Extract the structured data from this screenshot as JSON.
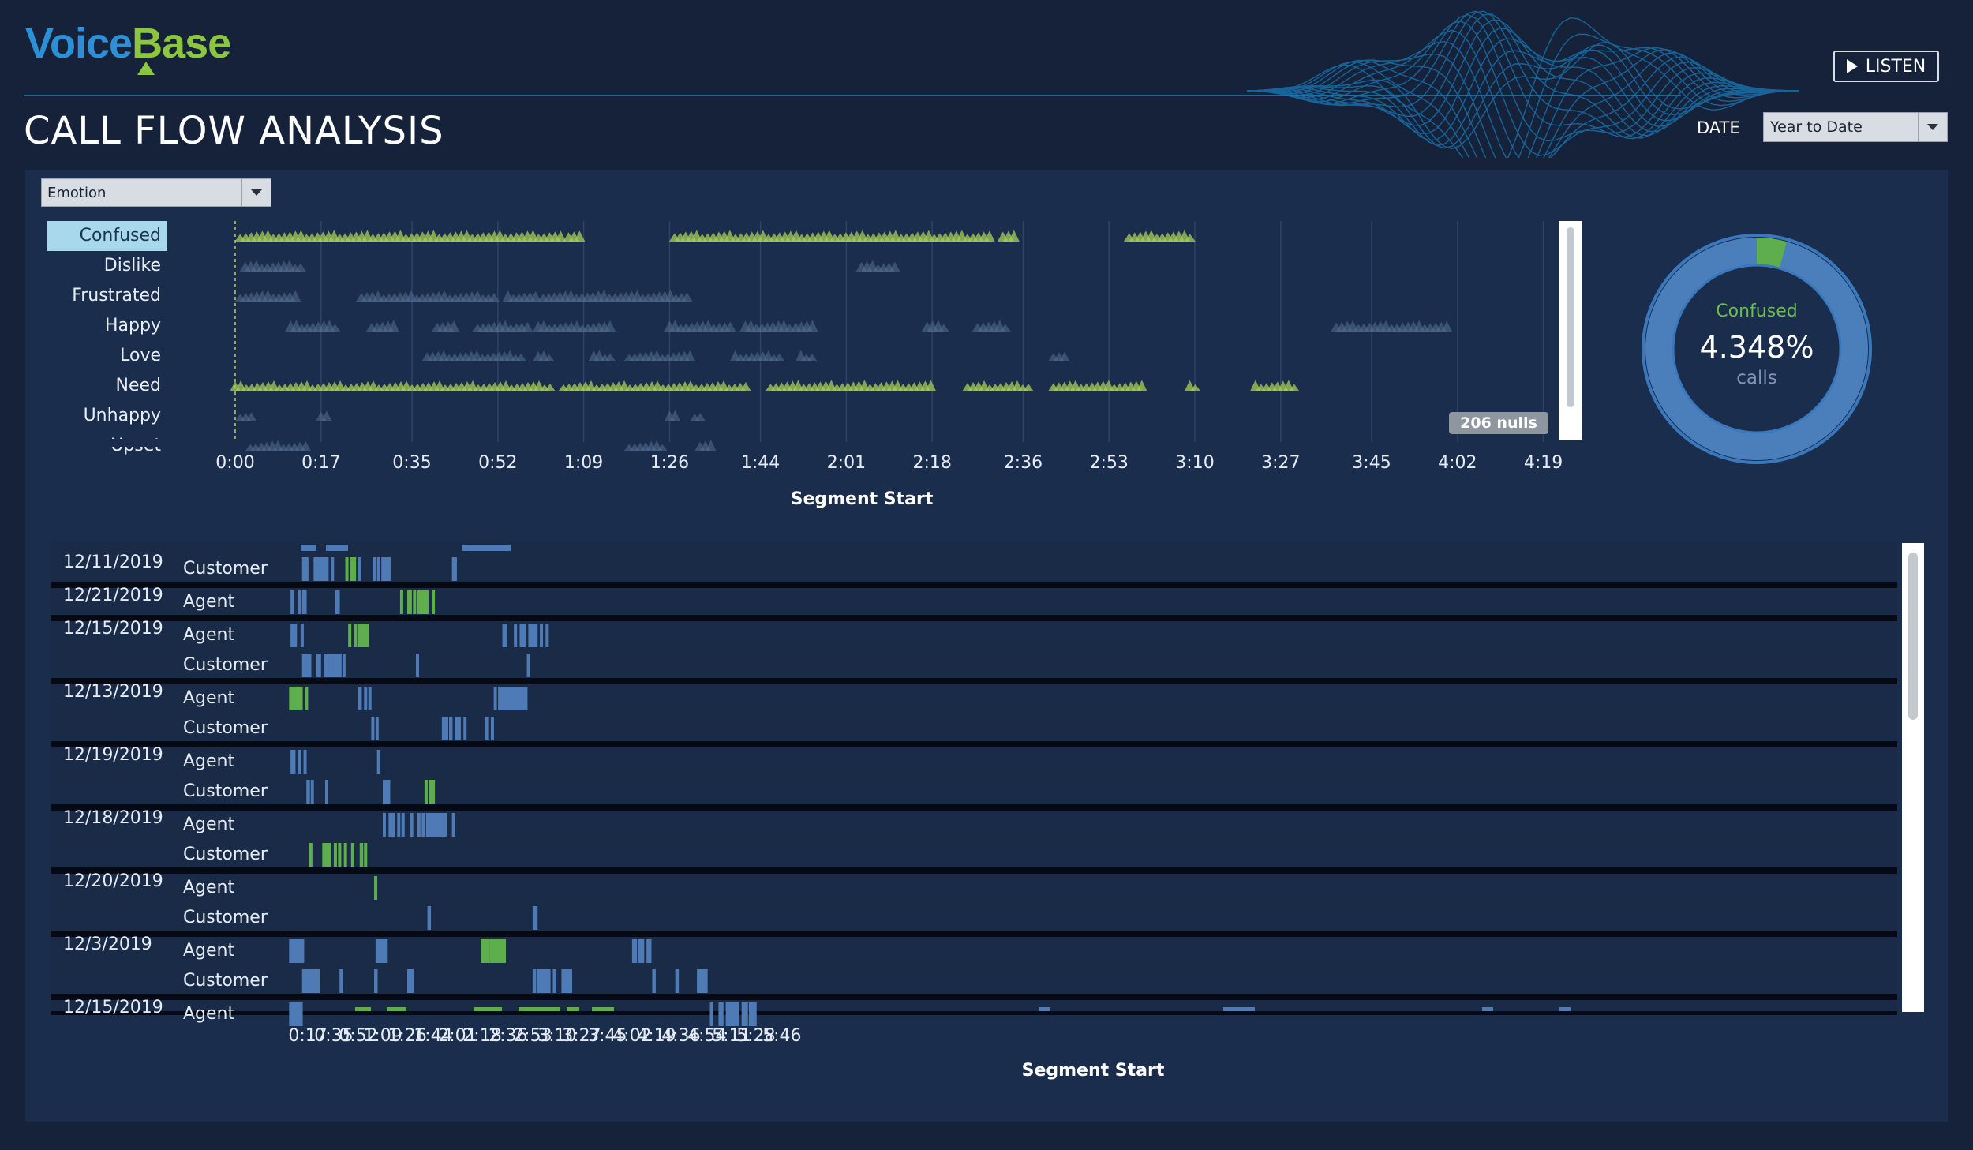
{
  "header": {
    "logo_voice": "Voice",
    "logo_base": "Base",
    "listen_label": "LISTEN",
    "title": "CALL FLOW ANALYSIS",
    "date_label": "DATE",
    "date_value": "Year to Date"
  },
  "colors": {
    "page_bg": "#15223a",
    "panel_bg": "#1b2d4c",
    "segment_blue": "#4e7ab5",
    "segment_green": "#5fae4e",
    "triangle_green": "#a6cf57",
    "triangle_dim": "#56708f",
    "donut_blue": "#4a7fbb",
    "donut_green": "#5fae4e"
  },
  "emotion_chart": {
    "filter_value": "Emotion",
    "emotions": [
      "Confused",
      "Dislike",
      "Frustrated",
      "Happy",
      "Love",
      "Need",
      "Unhappy",
      "Upset"
    ],
    "selected": "Confused",
    "x_ticks": [
      "0:00",
      "0:17",
      "0:35",
      "0:52",
      "1:09",
      "1:26",
      "1:44",
      "2:01",
      "2:18",
      "2:36",
      "2:53",
      "3:10",
      "3:27",
      "3:45",
      "4:02",
      "4:19"
    ],
    "x_title": "Segment Start",
    "nulls_label": "206 nulls",
    "marks": [
      {
        "emotion": "Confused",
        "bright": true,
        "ranges": [
          [
            "0:01",
            "1:05"
          ],
          [
            "1:06",
            "1:09"
          ],
          [
            "1:27",
            "2:30"
          ],
          [
            "2:32",
            "2:35"
          ],
          [
            "2:57",
            "3:10"
          ]
        ]
      },
      {
        "emotion": "Dislike",
        "bright": false,
        "ranges": [
          [
            "0:02",
            "0:14"
          ],
          [
            "2:04",
            "2:11"
          ]
        ]
      },
      {
        "emotion": "Frustrated",
        "bright": false,
        "ranges": [
          [
            "0:01",
            "0:13"
          ],
          [
            "0:25",
            "0:52"
          ],
          [
            "0:54",
            "1:00"
          ],
          [
            "1:01",
            "1:30"
          ]
        ]
      },
      {
        "emotion": "Happy",
        "bright": false,
        "ranges": [
          [
            "0:11",
            "0:20"
          ],
          [
            "0:27",
            "0:32"
          ],
          [
            "0:40",
            "0:44"
          ],
          [
            "0:48",
            "0:58"
          ],
          [
            "1:00",
            "1:15"
          ],
          [
            "1:26",
            "1:39"
          ],
          [
            "1:41",
            "1:50"
          ],
          [
            "1:51",
            "1:55"
          ],
          [
            "2:17",
            "2:21"
          ],
          [
            "2:27",
            "2:33"
          ],
          [
            "3:38",
            "4:00"
          ]
        ]
      },
      {
        "emotion": "Love",
        "bright": false,
        "ranges": [
          [
            "0:38",
            "0:57"
          ],
          [
            "1:00",
            "1:03"
          ],
          [
            "1:11",
            "1:15"
          ],
          [
            "1:18",
            "1:31"
          ],
          [
            "1:39",
            "1:48"
          ],
          [
            "1:52",
            "1:55"
          ],
          [
            "2:42",
            "2:45"
          ]
        ]
      },
      {
        "emotion": "Need",
        "bright": true,
        "ranges": [
          [
            "0:00",
            "1:03"
          ],
          [
            "1:05",
            "1:42"
          ],
          [
            "1:46",
            "2:18"
          ],
          [
            "2:25",
            "2:38"
          ],
          [
            "2:42",
            "3:00"
          ],
          [
            "3:09",
            "3:11"
          ],
          [
            "3:22",
            "3:30"
          ]
        ]
      },
      {
        "emotion": "Unhappy",
        "bright": false,
        "ranges": [
          [
            "0:01",
            "0:04"
          ],
          [
            "0:17",
            "0:19"
          ],
          [
            "1:26",
            "1:28"
          ],
          [
            "1:31",
            "1:33"
          ]
        ]
      },
      {
        "emotion": "Upset",
        "bright": false,
        "ranges": [
          [
            "0:03",
            "0:15"
          ],
          [
            "1:18",
            "1:25"
          ],
          [
            "1:32",
            "1:35"
          ]
        ]
      }
    ]
  },
  "donut": {
    "label": "Confused",
    "value": "4.348%",
    "unit": "calls",
    "fraction": 0.04348
  },
  "call_flow": {
    "x_ticks": [
      "0:17",
      "0:35",
      "0:52",
      "1:09",
      "1:26",
      "1:44",
      "2:01",
      "2:18",
      "2:36",
      "2:53",
      "3:10",
      "3:27",
      "3:45",
      "4:02",
      "4:19",
      "4:36",
      "4:54",
      "5:11",
      "5:28",
      "5:46"
    ],
    "x_title": "Segment Start",
    "rows": [
      {
        "date": "12/11/2019",
        "speaker": "Customer",
        "segments": [
          [
            "0:13",
            "0:18",
            "b"
          ],
          [
            "0:21",
            "0:23",
            "b"
          ],
          [
            "0:23",
            "0:32",
            "b"
          ],
          [
            "0:33",
            "0:35",
            "b"
          ],
          [
            "0:43",
            "0:45",
            "g"
          ],
          [
            "0:46",
            "0:51",
            "g"
          ],
          [
            "0:52",
            "0:54",
            "b"
          ],
          [
            "1:02",
            "1:04",
            "b"
          ],
          [
            "1:05",
            "1:06",
            "b"
          ],
          [
            "1:08",
            "1:15",
            "b"
          ],
          [
            "1:57",
            "2:01",
            "b"
          ]
        ]
      },
      {
        "date": "12/21/2019",
        "speaker": "Agent",
        "segments": [
          [
            "0:05",
            "0:08",
            "b"
          ],
          [
            "0:10",
            "0:12",
            "b"
          ],
          [
            "0:13",
            "0:14",
            "b"
          ],
          [
            "0:14",
            "0:16",
            "b"
          ],
          [
            "0:36",
            "0:37",
            "b"
          ],
          [
            "0:37",
            "0:38",
            "b"
          ],
          [
            "1:21",
            "1:22",
            "g"
          ],
          [
            "1:26",
            "1:27",
            "g"
          ],
          [
            "1:27",
            "1:29",
            "g"
          ],
          [
            "1:30",
            "1:32",
            "g"
          ],
          [
            "1:33",
            "1:34",
            "g"
          ],
          [
            "1:35",
            "1:36",
            "g"
          ],
          [
            "1:37",
            "1:38",
            "g"
          ],
          [
            "1:39",
            "1:40",
            "g"
          ],
          [
            "1:43",
            "1:44",
            "g"
          ]
        ]
      },
      {
        "date": "12/15/2019",
        "speaker": "Agent",
        "segments": [
          [
            "0:05",
            "0:10",
            "b"
          ],
          [
            "0:12",
            "0:13",
            "b"
          ],
          [
            "0:45",
            "0:47",
            "g"
          ],
          [
            "0:49",
            "0:50",
            "g"
          ],
          [
            "0:52",
            "0:54",
            "g"
          ],
          [
            "0:54",
            "0:55",
            "g"
          ],
          [
            "0:56",
            "0:57",
            "g"
          ],
          [
            "0:57",
            "0:58",
            "g"
          ],
          [
            "2:32",
            "2:36",
            "b"
          ],
          [
            "2:40",
            "2:41",
            "b"
          ],
          [
            "2:44",
            "2:46",
            "b"
          ],
          [
            "2:46",
            "2:48",
            "b"
          ],
          [
            "2:50",
            "2:57",
            "b"
          ],
          [
            "2:58",
            "3:00",
            "b"
          ],
          [
            "3:02",
            "3:04",
            "b"
          ]
        ]
      },
      {
        "date": "",
        "speaker": "Customer",
        "segments": [
          [
            "0:13",
            "0:14",
            "b"
          ],
          [
            "0:15",
            "0:17",
            "b"
          ],
          [
            "0:17",
            "0:20",
            "b"
          ],
          [
            "0:23",
            "0:24",
            "b"
          ],
          [
            "0:24",
            "0:26",
            "b"
          ],
          [
            "0:28",
            "0:29",
            "b"
          ],
          [
            "0:30",
            "0:31",
            "b"
          ],
          [
            "0:32",
            "0:34",
            "b"
          ],
          [
            "0:34",
            "0:41",
            "b"
          ],
          [
            "0:41",
            "0:43",
            "b"
          ],
          [
            "1:32",
            "1:34",
            "b"
          ],
          [
            "2:49",
            "2:51",
            "b"
          ]
        ]
      },
      {
        "date": "12/13/2019",
        "speaker": "Agent",
        "segments": [
          [
            "0:04",
            "0:14",
            "g"
          ],
          [
            "0:15",
            "0:17",
            "g"
          ],
          [
            "0:52",
            "0:55",
            "b"
          ],
          [
            "0:56",
            "0:58",
            "b"
          ],
          [
            "0:59",
            "1:01",
            "b"
          ],
          [
            "2:26",
            "2:28",
            "b"
          ],
          [
            "2:29",
            "2:31",
            "b"
          ],
          [
            "2:31",
            "2:50",
            "b"
          ]
        ]
      },
      {
        "date": "",
        "speaker": "Customer",
        "segments": [
          [
            "1:01",
            "1:03",
            "b"
          ],
          [
            "1:04",
            "1:06",
            "b"
          ],
          [
            "1:50",
            "1:52",
            "b"
          ],
          [
            "1:52",
            "1:55",
            "b"
          ],
          [
            "1:55",
            "1:58",
            "b"
          ],
          [
            "1:59",
            "2:01",
            "b"
          ],
          [
            "2:01",
            "2:03",
            "b"
          ],
          [
            "2:05",
            "2:07",
            "b"
          ],
          [
            "2:20",
            "2:22",
            "b"
          ],
          [
            "2:24",
            "2:26",
            "b"
          ]
        ]
      },
      {
        "date": "12/19/2019",
        "speaker": "Agent",
        "segments": [
          [
            "0:05",
            "0:09",
            "b"
          ],
          [
            "0:10",
            "0:13",
            "b"
          ],
          [
            "0:14",
            "0:16",
            "b"
          ],
          [
            "1:05",
            "1:06",
            "b"
          ]
        ]
      },
      {
        "date": "",
        "speaker": "Customer",
        "segments": [
          [
            "0:16",
            "0:19",
            "b"
          ],
          [
            "0:19",
            "0:20",
            "b"
          ],
          [
            "0:29",
            "0:31",
            "b"
          ],
          [
            "1:09",
            "1:10",
            "b"
          ],
          [
            "1:10",
            "1:12",
            "b"
          ],
          [
            "1:12",
            "1:14",
            "b"
          ],
          [
            "1:38",
            "1:40",
            "g"
          ],
          [
            "1:41",
            "1:42",
            "g"
          ],
          [
            "1:43",
            "1:45",
            "g"
          ]
        ]
      },
      {
        "date": "12/18/2019",
        "speaker": "Agent",
        "segments": [
          [
            "1:09",
            "1:10",
            "b"
          ],
          [
            "1:13",
            "1:14",
            "b"
          ],
          [
            "1:15",
            "1:18",
            "b"
          ],
          [
            "1:19",
            "1:20",
            "b"
          ],
          [
            "1:22",
            "1:24",
            "b"
          ],
          [
            "1:28",
            "1:29",
            "b"
          ],
          [
            "1:33",
            "1:34",
            "b"
          ],
          [
            "1:36",
            "1:38",
            "b"
          ],
          [
            "1:39",
            "1:40",
            "b"
          ],
          [
            "1:41",
            "1:42",
            "b"
          ],
          [
            "1:43",
            "1:45",
            "b"
          ],
          [
            "1:45",
            "1:47",
            "b"
          ],
          [
            "1:47",
            "1:54",
            "b"
          ],
          [
            "1:57",
            "1:58",
            "b"
          ]
        ]
      },
      {
        "date": "",
        "speaker": "Customer",
        "segments": [
          [
            "0:18",
            "0:19",
            "g"
          ],
          [
            "0:27",
            "0:29",
            "g"
          ],
          [
            "0:29",
            "0:31",
            "g"
          ],
          [
            "0:31",
            "0:33",
            "g"
          ],
          [
            "0:35",
            "0:36",
            "g"
          ],
          [
            "0:38",
            "0:39",
            "g"
          ],
          [
            "0:42",
            "0:43",
            "g"
          ],
          [
            "0:47",
            "0:49",
            "g"
          ],
          [
            "0:53",
            "0:56",
            "g"
          ],
          [
            "0:56",
            "0:57",
            "g"
          ]
        ]
      },
      {
        "date": "12/20/2019",
        "speaker": "Agent",
        "segments": [
          [
            "1:03",
            "1:04",
            "g"
          ]
        ]
      },
      {
        "date": "",
        "speaker": "Customer",
        "segments": [
          [
            "1:40",
            "1:43",
            "b"
          ],
          [
            "2:53",
            "2:57",
            "b"
          ]
        ]
      },
      {
        "date": "12/3/2019",
        "speaker": "Agent",
        "segments": [
          [
            "0:04",
            "0:15",
            "b"
          ],
          [
            "1:04",
            "1:13",
            "b"
          ],
          [
            "2:17",
            "2:23",
            "g"
          ],
          [
            "2:23",
            "2:35",
            "g"
          ],
          [
            "4:02",
            "4:06",
            "b"
          ],
          [
            "4:06",
            "4:11",
            "b"
          ],
          [
            "4:12",
            "4:16",
            "b"
          ]
        ]
      },
      {
        "date": "",
        "speaker": "Customer",
        "segments": [
          [
            "0:13",
            "0:23",
            "b"
          ],
          [
            "0:23",
            "0:26",
            "b"
          ],
          [
            "0:39",
            "0:42",
            "b"
          ],
          [
            "1:03",
            "1:06",
            "b"
          ],
          [
            "1:26",
            "1:31",
            "b"
          ],
          [
            "2:53",
            "2:56",
            "b"
          ],
          [
            "2:56",
            "3:06",
            "b"
          ],
          [
            "3:07",
            "3:10",
            "b"
          ],
          [
            "3:13",
            "3:21",
            "b"
          ],
          [
            "4:16",
            "4:19",
            "b"
          ],
          [
            "4:32",
            "4:35",
            "b"
          ],
          [
            "4:47",
            "4:55",
            "b"
          ]
        ]
      },
      {
        "date": "12/15/2019",
        "speaker": "Agent",
        "segments": [
          [
            "0:04",
            "0:14",
            "b"
          ],
          [
            "4:56",
            "4:59",
            "b"
          ],
          [
            "5:02",
            "5:06",
            "b"
          ],
          [
            "5:07",
            "5:08",
            "b"
          ],
          [
            "5:08",
            "5:17",
            "b"
          ],
          [
            "5:18",
            "5:23",
            "b"
          ],
          [
            "5:23",
            "5:29",
            "b"
          ]
        ]
      }
    ]
  }
}
